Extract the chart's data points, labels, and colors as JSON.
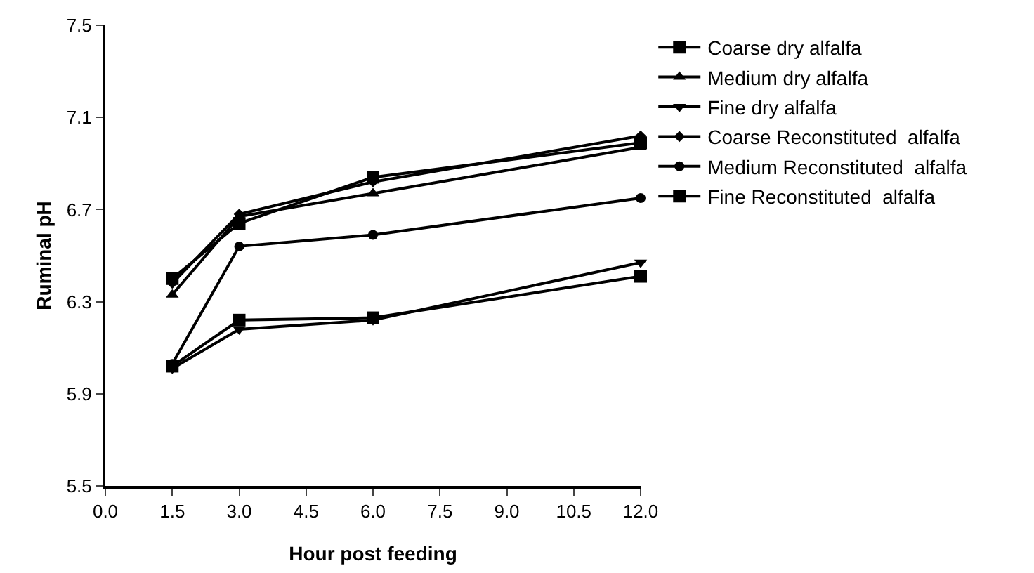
{
  "chart_data": {
    "type": "line",
    "xlabel": "Hour post feeding",
    "ylabel": "Ruminal pH",
    "x": [
      1.5,
      3.0,
      6.0,
      12.0
    ],
    "xlim": [
      0,
      12
    ],
    "xticks": [
      {
        "value": 0,
        "label": "0.0"
      },
      {
        "value": 1.5,
        "label": "1.5"
      },
      {
        "value": 3,
        "label": "3.0"
      },
      {
        "value": 4.5,
        "label": "4.5"
      },
      {
        "value": 6,
        "label": "6.0"
      },
      {
        "value": 7.5,
        "label": "7.5"
      },
      {
        "value": 9,
        "label": "9.0"
      },
      {
        "value": 10.5,
        "label": "10.5"
      },
      {
        "value": 12,
        "label": "12.0"
      }
    ],
    "ylim": [
      5.5,
      7.5
    ],
    "yticks": [
      5.5,
      5.9,
      6.3,
      6.7,
      7.1,
      7.5
    ],
    "grid": false,
    "legend": "right",
    "line_style": "solid",
    "series": [
      {
        "name": "Coarse dry alfalfa",
        "color": "#000000",
        "marker": "square",
        "values": [
          6.4,
          6.64,
          6.84,
          6.99
        ]
      },
      {
        "name": "Medium dry alfalfa",
        "color": "#000000",
        "marker": "triangle",
        "values": [
          6.33,
          6.67,
          6.77,
          6.97
        ]
      },
      {
        "name": "Fine dry alfalfa",
        "color": "#000000",
        "marker": "triangle-down",
        "values": [
          6.01,
          6.18,
          6.22,
          6.47
        ]
      },
      {
        "name": "Coarse Reconstituted  alfalfa",
        "color": "#000000",
        "marker": "diamond",
        "values": [
          6.38,
          6.68,
          6.82,
          7.02
        ]
      },
      {
        "name": "Medium Reconstituted  alfalfa",
        "color": "#000000",
        "marker": "circle",
        "values": [
          6.03,
          6.54,
          6.59,
          6.75
        ]
      },
      {
        "name": "Fine Reconstituted  alfalfa",
        "color": "#000000",
        "marker": "square",
        "values": [
          6.02,
          6.22,
          6.23,
          6.41
        ]
      }
    ]
  }
}
